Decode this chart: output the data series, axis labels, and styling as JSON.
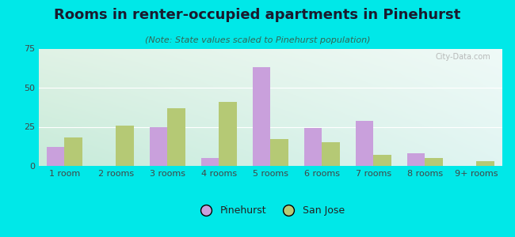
{
  "title": "Rooms in renter-occupied apartments in Pinehurst",
  "subtitle": "(Note: State values scaled to Pinehurst population)",
  "categories": [
    "1 room",
    "2 rooms",
    "3 rooms",
    "4 rooms",
    "5 rooms",
    "6 rooms",
    "7 rooms",
    "8 rooms",
    "9+ rooms"
  ],
  "pinehurst": [
    12,
    0,
    25,
    5,
    63,
    24,
    29,
    8,
    0
  ],
  "san_jose": [
    18,
    26,
    37,
    41,
    17,
    15,
    7,
    5,
    3
  ],
  "pinehurst_color": "#c9a0dc",
  "san_jose_color": "#b5c975",
  "background_outer": "#00e8e8",
  "background_inner_tl": "#d0ede0",
  "background_inner_tr": "#e8f8f8",
  "background_inner_bl": "#c8e8d8",
  "background_inner_br": "#e0f5f5",
  "ylim": [
    0,
    75
  ],
  "yticks": [
    0,
    25,
    50,
    75
  ],
  "bar_width": 0.35,
  "title_fontsize": 13,
  "subtitle_fontsize": 8,
  "tick_fontsize": 8,
  "legend_fontsize": 9
}
